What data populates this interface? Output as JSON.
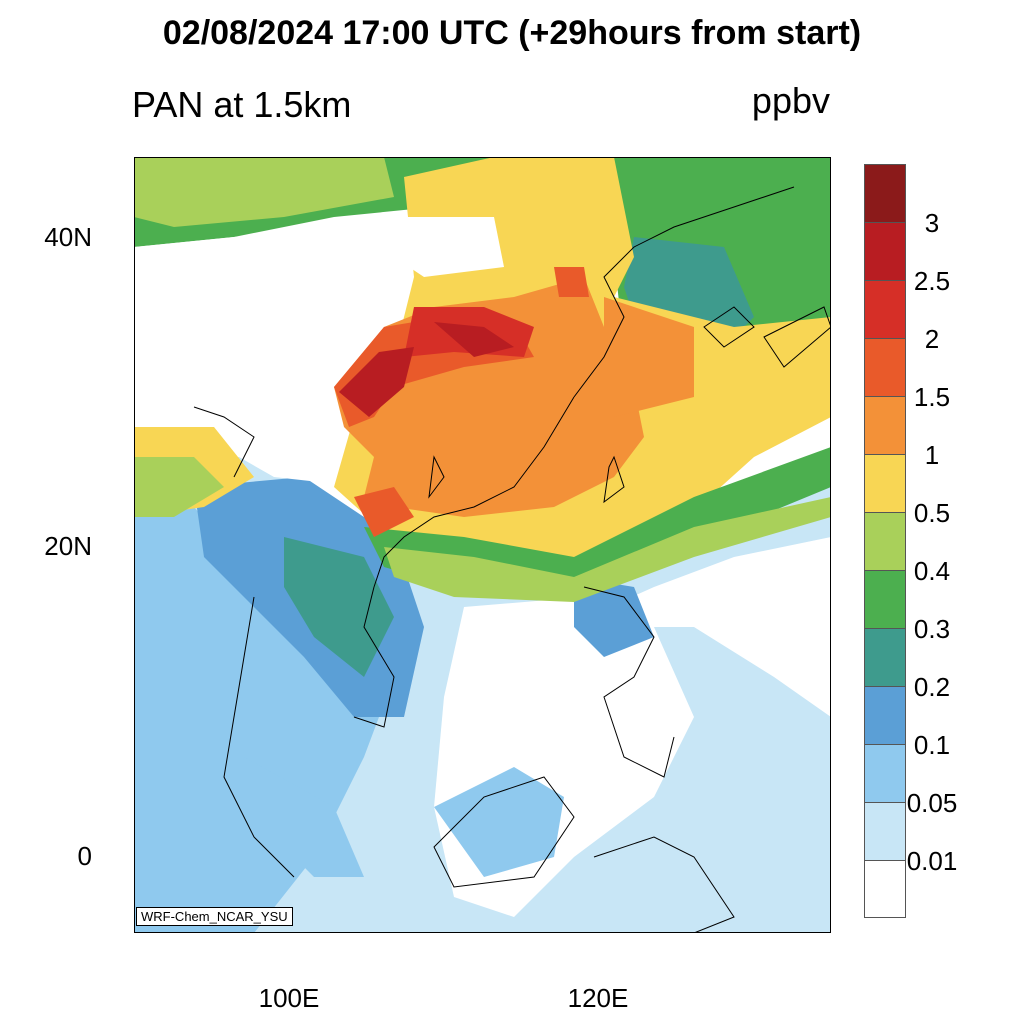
{
  "title": "02/08/2024 17:00 UTC (+29hours from start)",
  "variable_label": "PAN at 1.5km",
  "units": "ppbv",
  "credit": "WRF-Chem_NCAR_YSU",
  "lat_labels": [
    "40N",
    "20N",
    "0"
  ],
  "lon_labels": [
    "100E",
    "120E"
  ],
  "colorbar": {
    "colors": [
      "#8b1a1a",
      "#b81d22",
      "#d62f27",
      "#e95a2a",
      "#f39138",
      "#f8d654",
      "#a9d05a",
      "#4caf4f",
      "#3e9b8d",
      "#5b9fd6",
      "#8fc9ee",
      "#c8e6f6",
      "#ffffff"
    ],
    "labels": [
      "3",
      "2.5",
      "2",
      "1.5",
      "1",
      "0.5",
      "0.4",
      "0.3",
      "0.2",
      "0.1",
      "0.05",
      "0.01"
    ]
  }
}
